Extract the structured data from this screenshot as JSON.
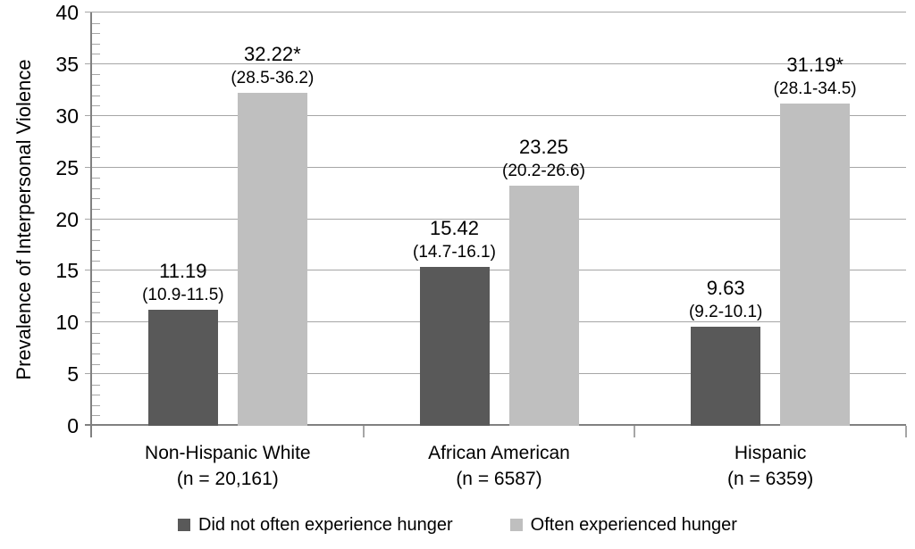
{
  "figure": {
    "background": "#ffffff"
  },
  "chart_data": {
    "type": "bar",
    "title": "",
    "ylabel": "Prevalence of Interpersonal Violence",
    "xlabel": "",
    "ylim": [
      0,
      40
    ],
    "y_major": 5,
    "y_minor": 1,
    "y_ticks": [
      0,
      5,
      10,
      15,
      20,
      25,
      30,
      35,
      40
    ],
    "grid": "horizontal-major",
    "legend_position": "bottom",
    "categories": [
      {
        "label": "Non-Hispanic White",
        "sublabel": "(n = 20,161)"
      },
      {
        "label": "African American",
        "sublabel": "(n = 6587)"
      },
      {
        "label": "Hispanic",
        "sublabel": "(n = 6359)"
      }
    ],
    "series": [
      {
        "name": "Did not often experience hunger",
        "color": "#595959",
        "values": [
          11.19,
          15.42,
          9.63
        ],
        "value_labels": [
          "11.19",
          "15.42",
          "9.63"
        ],
        "ci_labels": [
          "(10.9-11.5)",
          "(14.7-16.1)",
          "(9.2-10.1)"
        ]
      },
      {
        "name": "Often experienced hunger",
        "color": "#BFBFBF",
        "values": [
          32.22,
          23.25,
          31.19
        ],
        "value_labels": [
          "32.22*",
          "23.25",
          "31.19*"
        ],
        "ci_labels": [
          "(28.5-36.2)",
          "(20.2-26.6)",
          "(28.1-34.5)"
        ]
      }
    ],
    "colors": {
      "gridline": "#A6A6A6",
      "axis": "#808080",
      "text": "#000000"
    }
  }
}
